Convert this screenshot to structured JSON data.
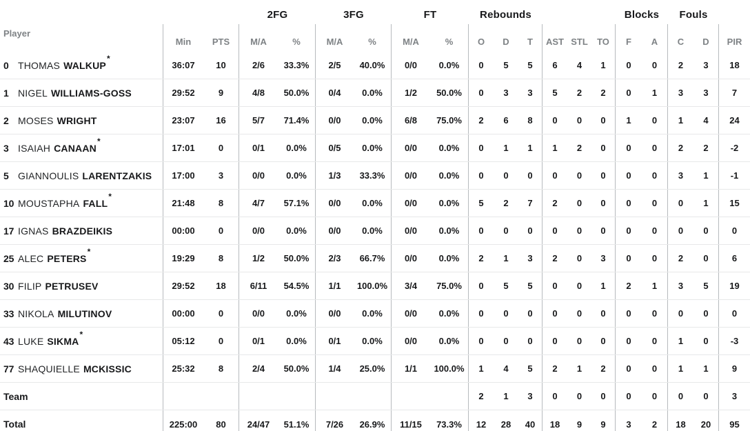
{
  "colors": {
    "background": "#ffffff",
    "text": "#17181a",
    "muted_header": "#7e8285",
    "vertical_divider": "#b6babd",
    "row_divider": "#e7e8e9"
  },
  "table": {
    "player_header": "Player",
    "starter_marker": "*",
    "group_headers": {
      "fg2": "2FG",
      "fg3": "3FG",
      "ft": "FT",
      "rebounds": "Rebounds",
      "blocks": "Blocks",
      "fouls": "Fouls"
    },
    "sub_headers": {
      "min": "Min",
      "pts": "PTS",
      "ma": "M/A",
      "pct": "%",
      "o": "O",
      "d": "D",
      "t": "T",
      "ast": "AST",
      "stl": "STL",
      "to": "TO",
      "f": "F",
      "a": "A",
      "c": "C",
      "dd": "D",
      "pir": "PIR"
    },
    "rows": [
      {
        "type": "player",
        "num": "0",
        "first": "THOMAS",
        "last": "WALKUP",
        "starter": true,
        "min": "36:07",
        "pts": "10",
        "fg2_ma": "2/6",
        "fg2_pct": "33.3%",
        "fg3_ma": "2/5",
        "fg3_pct": "40.0%",
        "ft_ma": "0/0",
        "ft_pct": "0.0%",
        "reb_o": "0",
        "reb_d": "5",
        "reb_t": "5",
        "ast": "6",
        "stl": "4",
        "to": "1",
        "blk_f": "0",
        "blk_a": "0",
        "foul_c": "2",
        "foul_d": "3",
        "pir": "18"
      },
      {
        "type": "player",
        "num": "1",
        "first": "NIGEL",
        "last": "WILLIAMS-GOSS",
        "starter": false,
        "min": "29:52",
        "pts": "9",
        "fg2_ma": "4/8",
        "fg2_pct": "50.0%",
        "fg3_ma": "0/4",
        "fg3_pct": "0.0%",
        "ft_ma": "1/2",
        "ft_pct": "50.0%",
        "reb_o": "0",
        "reb_d": "3",
        "reb_t": "3",
        "ast": "5",
        "stl": "2",
        "to": "2",
        "blk_f": "0",
        "blk_a": "1",
        "foul_c": "3",
        "foul_d": "3",
        "pir": "7"
      },
      {
        "type": "player",
        "num": "2",
        "first": "MOSES",
        "last": "WRIGHT",
        "starter": false,
        "min": "23:07",
        "pts": "16",
        "fg2_ma": "5/7",
        "fg2_pct": "71.4%",
        "fg3_ma": "0/0",
        "fg3_pct": "0.0%",
        "ft_ma": "6/8",
        "ft_pct": "75.0%",
        "reb_o": "2",
        "reb_d": "6",
        "reb_t": "8",
        "ast": "0",
        "stl": "0",
        "to": "0",
        "blk_f": "1",
        "blk_a": "0",
        "foul_c": "1",
        "foul_d": "4",
        "pir": "24"
      },
      {
        "type": "player",
        "num": "3",
        "first": "ISAIAH",
        "last": "CANAAN",
        "starter": true,
        "min": "17:01",
        "pts": "0",
        "fg2_ma": "0/1",
        "fg2_pct": "0.0%",
        "fg3_ma": "0/5",
        "fg3_pct": "0.0%",
        "ft_ma": "0/0",
        "ft_pct": "0.0%",
        "reb_o": "0",
        "reb_d": "1",
        "reb_t": "1",
        "ast": "1",
        "stl": "2",
        "to": "0",
        "blk_f": "0",
        "blk_a": "0",
        "foul_c": "2",
        "foul_d": "2",
        "pir": "-2"
      },
      {
        "type": "player",
        "num": "5",
        "first": "GIANNOULIS",
        "last": "LARENTZAKIS",
        "starter": false,
        "min": "17:00",
        "pts": "3",
        "fg2_ma": "0/0",
        "fg2_pct": "0.0%",
        "fg3_ma": "1/3",
        "fg3_pct": "33.3%",
        "ft_ma": "0/0",
        "ft_pct": "0.0%",
        "reb_o": "0",
        "reb_d": "0",
        "reb_t": "0",
        "ast": "0",
        "stl": "0",
        "to": "0",
        "blk_f": "0",
        "blk_a": "0",
        "foul_c": "3",
        "foul_d": "1",
        "pir": "-1"
      },
      {
        "type": "player",
        "num": "10",
        "first": "MOUSTAPHA",
        "last": "FALL",
        "starter": true,
        "min": "21:48",
        "pts": "8",
        "fg2_ma": "4/7",
        "fg2_pct": "57.1%",
        "fg3_ma": "0/0",
        "fg3_pct": "0.0%",
        "ft_ma": "0/0",
        "ft_pct": "0.0%",
        "reb_o": "5",
        "reb_d": "2",
        "reb_t": "7",
        "ast": "2",
        "stl": "0",
        "to": "0",
        "blk_f": "0",
        "blk_a": "0",
        "foul_c": "0",
        "foul_d": "1",
        "pir": "15"
      },
      {
        "type": "player",
        "num": "17",
        "first": "IGNAS",
        "last": "BRAZDEIKIS",
        "starter": false,
        "min": "00:00",
        "pts": "0",
        "fg2_ma": "0/0",
        "fg2_pct": "0.0%",
        "fg3_ma": "0/0",
        "fg3_pct": "0.0%",
        "ft_ma": "0/0",
        "ft_pct": "0.0%",
        "reb_o": "0",
        "reb_d": "0",
        "reb_t": "0",
        "ast": "0",
        "stl": "0",
        "to": "0",
        "blk_f": "0",
        "blk_a": "0",
        "foul_c": "0",
        "foul_d": "0",
        "pir": "0"
      },
      {
        "type": "player",
        "num": "25",
        "first": "ALEC",
        "last": "PETERS",
        "starter": true,
        "min": "19:29",
        "pts": "8",
        "fg2_ma": "1/2",
        "fg2_pct": "50.0%",
        "fg3_ma": "2/3",
        "fg3_pct": "66.7%",
        "ft_ma": "0/0",
        "ft_pct": "0.0%",
        "reb_o": "2",
        "reb_d": "1",
        "reb_t": "3",
        "ast": "2",
        "stl": "0",
        "to": "3",
        "blk_f": "0",
        "blk_a": "0",
        "foul_c": "2",
        "foul_d": "0",
        "pir": "6"
      },
      {
        "type": "player",
        "num": "30",
        "first": "FILIP",
        "last": "PETRUSEV",
        "starter": false,
        "min": "29:52",
        "pts": "18",
        "fg2_ma": "6/11",
        "fg2_pct": "54.5%",
        "fg3_ma": "1/1",
        "fg3_pct": "100.0%",
        "ft_ma": "3/4",
        "ft_pct": "75.0%",
        "reb_o": "0",
        "reb_d": "5",
        "reb_t": "5",
        "ast": "0",
        "stl": "0",
        "to": "1",
        "blk_f": "2",
        "blk_a": "1",
        "foul_c": "3",
        "foul_d": "5",
        "pir": "19"
      },
      {
        "type": "player",
        "num": "33",
        "first": "NIKOLA",
        "last": "MILUTINOV",
        "starter": false,
        "min": "00:00",
        "pts": "0",
        "fg2_ma": "0/0",
        "fg2_pct": "0.0%",
        "fg3_ma": "0/0",
        "fg3_pct": "0.0%",
        "ft_ma": "0/0",
        "ft_pct": "0.0%",
        "reb_o": "0",
        "reb_d": "0",
        "reb_t": "0",
        "ast": "0",
        "stl": "0",
        "to": "0",
        "blk_f": "0",
        "blk_a": "0",
        "foul_c": "0",
        "foul_d": "0",
        "pir": "0"
      },
      {
        "type": "player",
        "num": "43",
        "first": "LUKE",
        "last": "SIKMA",
        "starter": true,
        "min": "05:12",
        "pts": "0",
        "fg2_ma": "0/1",
        "fg2_pct": "0.0%",
        "fg3_ma": "0/1",
        "fg3_pct": "0.0%",
        "ft_ma": "0/0",
        "ft_pct": "0.0%",
        "reb_o": "0",
        "reb_d": "0",
        "reb_t": "0",
        "ast": "0",
        "stl": "0",
        "to": "0",
        "blk_f": "0",
        "blk_a": "0",
        "foul_c": "1",
        "foul_d": "0",
        "pir": "-3"
      },
      {
        "type": "player",
        "num": "77",
        "first": "SHAQUIELLE",
        "last": "MCKISSIC",
        "starter": false,
        "min": "25:32",
        "pts": "8",
        "fg2_ma": "2/4",
        "fg2_pct": "50.0%",
        "fg3_ma": "1/4",
        "fg3_pct": "25.0%",
        "ft_ma": "1/1",
        "ft_pct": "100.0%",
        "reb_o": "1",
        "reb_d": "4",
        "reb_t": "5",
        "ast": "2",
        "stl": "1",
        "to": "2",
        "blk_f": "0",
        "blk_a": "0",
        "foul_c": "1",
        "foul_d": "1",
        "pir": "9"
      },
      {
        "type": "team",
        "label": "Team",
        "reb_o": "2",
        "reb_d": "1",
        "reb_t": "3",
        "ast": "0",
        "stl": "0",
        "to": "0",
        "blk_f": "0",
        "blk_a": "0",
        "foul_c": "0",
        "foul_d": "0",
        "pir": "3"
      },
      {
        "type": "total",
        "label": "Total",
        "min": "225:00",
        "pts": "80",
        "fg2_ma": "24/47",
        "fg2_pct": "51.1%",
        "fg3_ma": "7/26",
        "fg3_pct": "26.9%",
        "ft_ma": "11/15",
        "ft_pct": "73.3%",
        "reb_o": "12",
        "reb_d": "28",
        "reb_t": "40",
        "ast": "18",
        "stl": "9",
        "to": "9",
        "blk_f": "3",
        "blk_a": "2",
        "foul_c": "18",
        "foul_d": "20",
        "pir": "95"
      }
    ]
  }
}
